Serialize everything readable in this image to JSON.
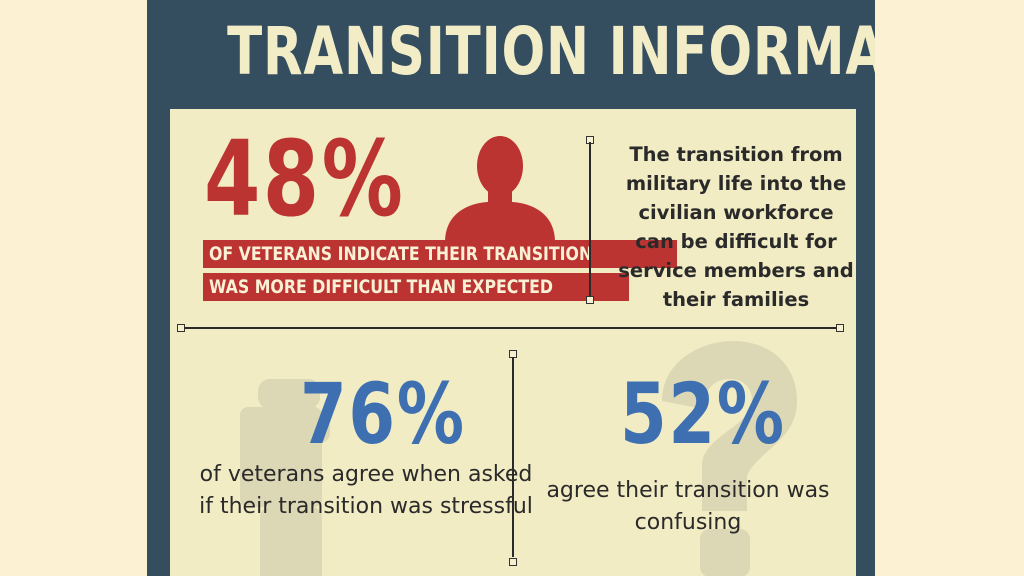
{
  "title": "TRANSITION INFORMATION",
  "stat1": {
    "value": "48%",
    "line1": "OF VETERANS INDICATE THEIR TRANSITION",
    "line2": "WAS MORE DIFFICULT THAN EXPECTED"
  },
  "side_text": "The transition from military life into the civilian workforce can be difficult for service members and their families",
  "stat2": {
    "value": "76%",
    "text": "of veterans agree when asked if their transition was stressful"
  },
  "stat3": {
    "value": "52%",
    "text": "agree their transition was confusing"
  },
  "colors": {
    "background": "#fdf1d4",
    "frame": "#344d5f",
    "panel": "#f2ecc4",
    "title": "#f2edc7",
    "red": "#bb3432",
    "blue": "#3d6fb1"
  },
  "icons": [
    "person-icon",
    "thumbs-down-icon",
    "question-mark-icon"
  ]
}
